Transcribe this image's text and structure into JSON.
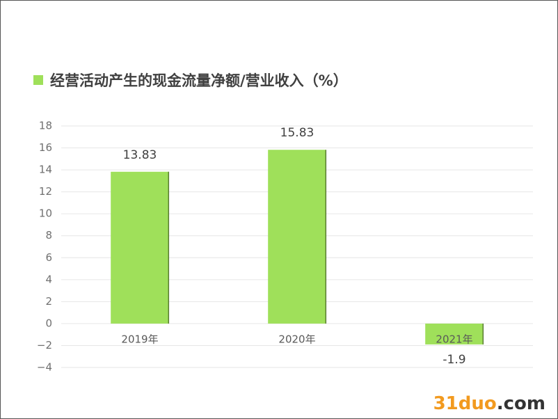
{
  "chart_data": {
    "type": "bar",
    "title": "经营活动产生的现金流量净额/营业收入（%）",
    "categories": [
      "2019年",
      "2020年",
      "2021年"
    ],
    "values": [
      13.83,
      15.83,
      -1.9
    ],
    "color": "#9fe05a",
    "ylim": [
      -4,
      18
    ],
    "yticks": [
      {
        "value": -4,
        "label": "−4"
      },
      {
        "value": -2,
        "label": "−2"
      },
      0,
      2,
      4,
      6,
      8,
      10,
      12,
      14,
      16,
      18
    ],
    "grid": true
  },
  "watermark": [
    "31duo",
    ".com"
  ]
}
